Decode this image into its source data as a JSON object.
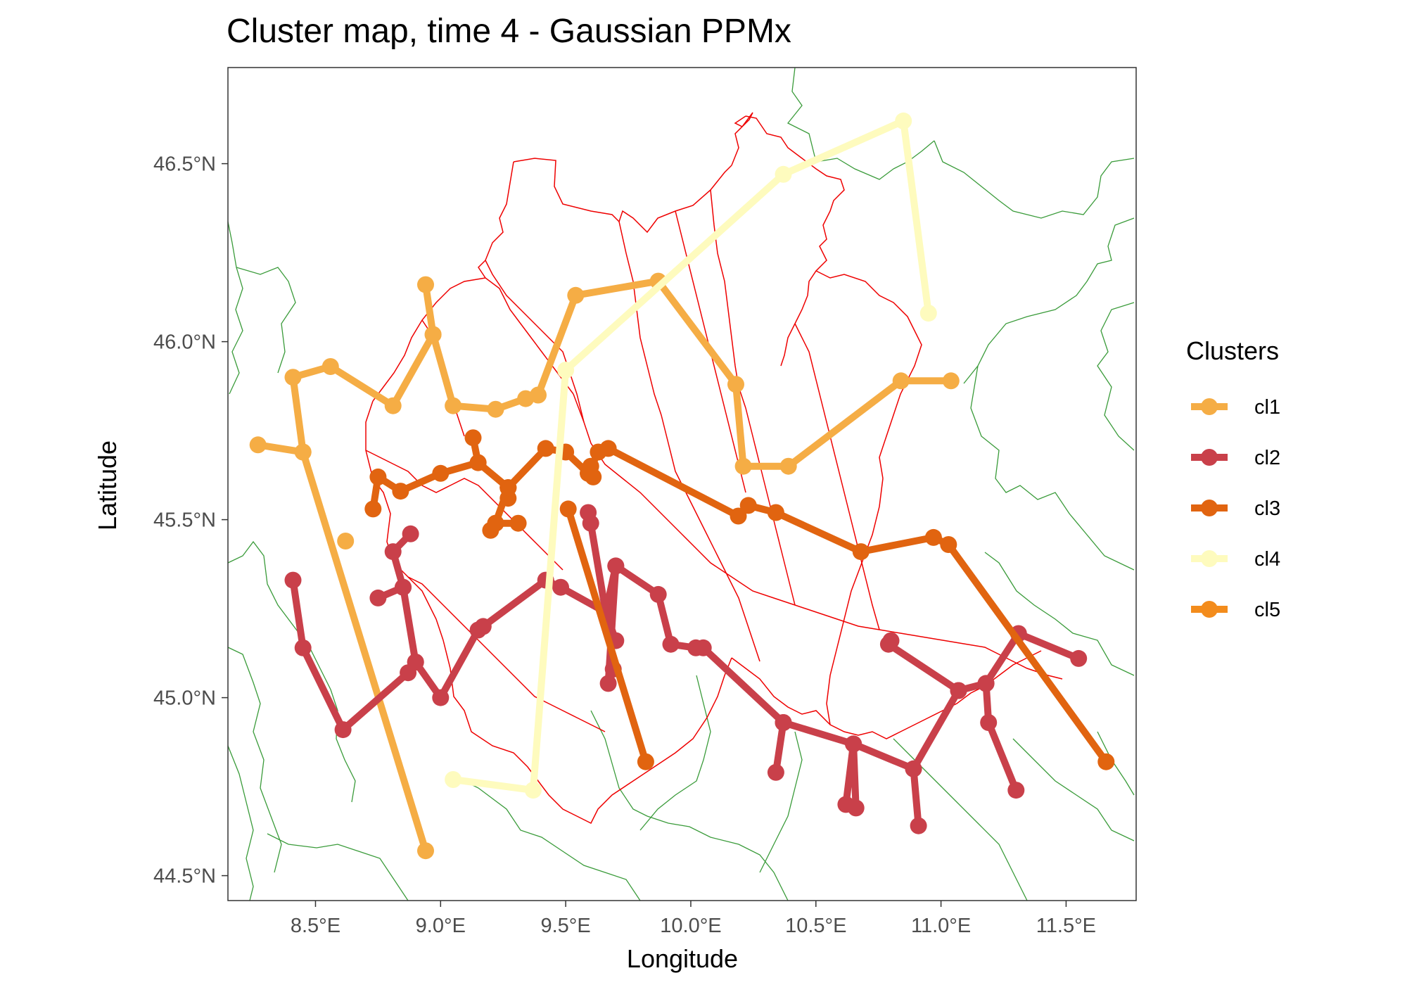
{
  "chart_data": {
    "type": "line",
    "title": "Cluster map, time 4 - Gaussian PPMx",
    "xlabel": "Longitude",
    "ylabel": "Latitude",
    "xlim": [
      8.15,
      11.78
    ],
    "ylim": [
      44.43,
      46.77
    ],
    "x_ticks": [
      8.5,
      9.0,
      9.5,
      10.0,
      10.5,
      11.0,
      11.5
    ],
    "x_tick_labels": [
      "8.5°E",
      "9.0°E",
      "9.5°E",
      "10.0°E",
      "10.5°E",
      "11.0°E",
      "11.5°E"
    ],
    "y_ticks": [
      44.5,
      45.0,
      45.5,
      46.0,
      46.5
    ],
    "y_tick_labels": [
      "44.5°N",
      "45.0°N",
      "45.5°N",
      "46.0°N",
      "46.5°N"
    ],
    "grid": false,
    "legend": {
      "title": "Clusters",
      "position": "right"
    },
    "series": [
      {
        "name": "cl1",
        "color": "#F5AD45",
        "paths": [
          [
            [
              8.27,
              45.71
            ],
            [
              8.45,
              45.69
            ],
            [
              8.94,
              44.57
            ]
          ],
          [
            [
              8.45,
              45.69
            ],
            [
              8.41,
              45.9
            ],
            [
              8.56,
              45.93
            ],
            [
              8.81,
              45.82
            ],
            [
              8.97,
              46.02
            ],
            [
              8.94,
              46.16
            ]
          ],
          [
            [
              8.97,
              46.02
            ],
            [
              9.05,
              45.82
            ],
            [
              9.22,
              45.81
            ],
            [
              9.34,
              45.84
            ],
            [
              9.39,
              45.85
            ],
            [
              9.54,
              46.13
            ],
            [
              9.87,
              46.17
            ],
            [
              10.18,
              45.88
            ],
            [
              10.21,
              45.65
            ],
            [
              10.39,
              45.65
            ],
            [
              10.84,
              45.89
            ],
            [
              11.04,
              45.89
            ]
          ]
        ],
        "points": [
          [
            8.62,
            45.44
          ]
        ]
      },
      {
        "name": "cl2",
        "color": "#C9404A",
        "paths": [
          [
            [
              8.41,
              45.33
            ],
            [
              8.45,
              45.14
            ],
            [
              8.61,
              44.91
            ],
            [
              8.87,
              45.07
            ],
            [
              8.9,
              45.1
            ],
            [
              8.85,
              45.31
            ],
            [
              8.75,
              45.28
            ]
          ],
          [
            [
              8.85,
              45.31
            ],
            [
              8.81,
              45.41
            ],
            [
              8.88,
              45.46
            ]
          ],
          [
            [
              8.9,
              45.1
            ],
            [
              9.0,
              45.0
            ],
            [
              9.15,
              45.19
            ],
            [
              9.17,
              45.2
            ],
            [
              9.42,
              45.33
            ],
            [
              9.48,
              45.31
            ],
            [
              9.66,
              45.24
            ],
            [
              9.7,
              45.16
            ]
          ],
          [
            [
              9.66,
              45.24
            ],
            [
              9.7,
              45.37
            ],
            [
              9.87,
              45.29
            ],
            [
              9.92,
              45.15
            ],
            [
              10.02,
              45.14
            ],
            [
              10.05,
              45.14
            ],
            [
              10.37,
              44.93
            ],
            [
              10.65,
              44.87
            ],
            [
              10.89,
              44.8
            ],
            [
              10.91,
              44.64
            ]
          ],
          [
            [
              10.37,
              44.93
            ],
            [
              10.34,
              44.79
            ]
          ],
          [
            [
              10.65,
              44.87
            ],
            [
              10.62,
              44.7
            ]
          ],
          [
            [
              10.65,
              44.87
            ],
            [
              10.66,
              44.69
            ]
          ],
          [
            [
              10.89,
              44.8
            ],
            [
              11.07,
              45.02
            ],
            [
              11.18,
              45.04
            ],
            [
              11.19,
              44.93
            ],
            [
              11.3,
              44.74
            ]
          ],
          [
            [
              11.07,
              45.02
            ],
            [
              10.79,
              45.15
            ],
            [
              10.8,
              45.16
            ]
          ],
          [
            [
              11.18,
              45.04
            ],
            [
              11.31,
              45.18
            ],
            [
              11.55,
              45.11
            ]
          ],
          [
            [
              9.7,
              45.37
            ],
            [
              9.67,
              45.04
            ],
            [
              9.69,
              45.08
            ]
          ],
          [
            [
              9.59,
              45.52
            ],
            [
              9.6,
              45.49
            ],
            [
              9.66,
              45.24
            ]
          ]
        ],
        "points": []
      },
      {
        "name": "cl3",
        "color": "#E16410",
        "paths": [
          [
            [
              8.73,
              45.53
            ],
            [
              8.75,
              45.62
            ],
            [
              8.84,
              45.58
            ],
            [
              9.0,
              45.63
            ],
            [
              9.15,
              45.66
            ],
            [
              9.27,
              45.59
            ],
            [
              9.27,
              45.56
            ]
          ],
          [
            [
              9.15,
              45.66
            ],
            [
              9.13,
              45.73
            ]
          ],
          [
            [
              9.27,
              45.59
            ],
            [
              9.22,
              45.49
            ],
            [
              9.2,
              45.47
            ]
          ],
          [
            [
              9.22,
              45.49
            ],
            [
              9.31,
              45.49
            ]
          ],
          [
            [
              9.27,
              45.59
            ],
            [
              9.42,
              45.7
            ],
            [
              9.5,
              45.69
            ],
            [
              9.59,
              45.63
            ],
            [
              9.63,
              45.69
            ],
            [
              9.67,
              45.7
            ],
            [
              10.19,
              45.51
            ],
            [
              10.23,
              45.54
            ],
            [
              10.34,
              45.52
            ],
            [
              10.68,
              45.41
            ],
            [
              10.97,
              45.45
            ],
            [
              11.03,
              45.43
            ],
            [
              11.66,
              44.82
            ]
          ],
          [
            [
              9.59,
              45.63
            ],
            [
              9.6,
              45.65
            ],
            [
              9.61,
              45.62
            ]
          ],
          [
            [
              9.51,
              45.53
            ],
            [
              9.82,
              44.82
            ]
          ]
        ],
        "points": []
      },
      {
        "name": "cl4",
        "color": "#FEFBBE",
        "paths": [
          [
            [
              9.05,
              44.77
            ],
            [
              9.37,
              44.74
            ],
            [
              9.5,
              45.92
            ],
            [
              10.37,
              46.47
            ],
            [
              10.85,
              46.62
            ],
            [
              10.95,
              46.08
            ]
          ]
        ],
        "points": []
      },
      {
        "name": "cl5",
        "color": "#F38C1C",
        "paths": [],
        "points": []
      }
    ]
  }
}
